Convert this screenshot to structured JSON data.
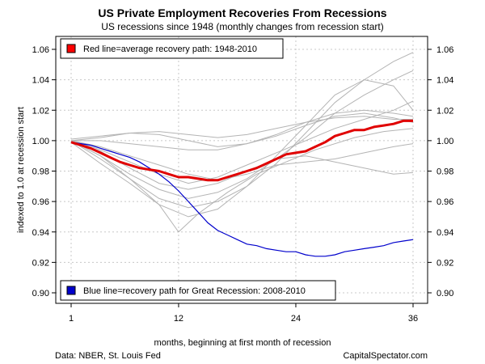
{
  "chart_data": {
    "type": "line",
    "title": "US Private Employment Recoveries From Recessions",
    "subtitle": "US recessions since 1948 (monthly changes from recession start)",
    "xlabel": "months, beginning at first month of recession",
    "ylabel": "indexed to 1.0 at recession start",
    "xlim": [
      1,
      36
    ],
    "ylim": [
      0.9,
      1.06
    ],
    "x_ticks": [
      1,
      12,
      24,
      36
    ],
    "x_tick_labels": [
      "1",
      "12",
      "24",
      "36"
    ],
    "y_ticks": [
      0.9,
      0.92,
      0.94,
      0.96,
      0.98,
      1.0,
      1.02,
      1.04,
      1.06
    ],
    "y_tick_labels": [
      "0.90",
      "0.92",
      "0.94",
      "0.96",
      "0.98",
      "1.00",
      "1.02",
      "1.04",
      "1.06"
    ],
    "grid": true,
    "legend": [
      {
        "label": "Red line=average recovery path: 1948-2010",
        "color": "#ff0000",
        "placement": "top-left"
      },
      {
        "label": "Blue line=recovery path for Great Recession: 2008-2010",
        "color": "#0000cc",
        "placement": "bottom-left"
      }
    ],
    "colors": {
      "average": "#e00000",
      "great_recession": "#0000cc",
      "recessions": "#b4b4b4",
      "grid": "#c8c8c8"
    },
    "series": [
      {
        "name": "average recovery path",
        "kind": "average",
        "x": [
          1,
          2,
          3,
          4,
          5,
          6,
          7,
          8,
          9,
          10,
          11,
          12,
          13,
          14,
          15,
          16,
          17,
          18,
          19,
          20,
          21,
          22,
          23,
          24,
          25,
          26,
          27,
          28,
          29,
          30,
          31,
          32,
          33,
          34,
          35,
          36
        ],
        "y": [
          0.999,
          0.997,
          0.995,
          0.992,
          0.989,
          0.986,
          0.984,
          0.982,
          0.981,
          0.98,
          0.978,
          0.976,
          0.976,
          0.975,
          0.974,
          0.974,
          0.976,
          0.978,
          0.98,
          0.982,
          0.985,
          0.988,
          0.991,
          0.992,
          0.993,
          0.996,
          0.999,
          1.003,
          1.005,
          1.007,
          1.007,
          1.009,
          1.01,
          1.011,
          1.013,
          1.013
        ]
      },
      {
        "name": "Great Recession 2008-2010",
        "kind": "great",
        "x": [
          1,
          2,
          3,
          4,
          5,
          6,
          7,
          8,
          9,
          10,
          11,
          12,
          13,
          14,
          15,
          16,
          17,
          18,
          19,
          20,
          21,
          22,
          23,
          24,
          25,
          26,
          27,
          28,
          29,
          30,
          31,
          32,
          33,
          34,
          35,
          36
        ],
        "y": [
          0.999,
          0.998,
          0.997,
          0.995,
          0.993,
          0.991,
          0.989,
          0.986,
          0.982,
          0.978,
          0.973,
          0.967,
          0.96,
          0.953,
          0.946,
          0.941,
          0.938,
          0.935,
          0.932,
          0.931,
          0.929,
          0.928,
          0.927,
          0.927,
          0.925,
          0.924,
          0.924,
          0.925,
          0.927,
          0.928,
          0.929,
          0.93,
          0.931,
          0.933,
          0.934,
          0.935
        ]
      },
      {
        "name": "recession 1",
        "kind": "recession",
        "x": [
          1,
          4,
          7,
          10,
          13,
          16,
          19,
          22,
          25,
          28,
          31,
          34,
          36
        ],
        "y": [
          1.0,
          0.988,
          0.975,
          0.962,
          0.956,
          0.96,
          0.97,
          0.985,
          1.005,
          1.025,
          1.04,
          1.052,
          1.058
        ]
      },
      {
        "name": "recession 2",
        "kind": "recession",
        "x": [
          1,
          4,
          7,
          10,
          13,
          16,
          19,
          22,
          25,
          28,
          31,
          34,
          36
        ],
        "y": [
          1.0,
          0.99,
          0.978,
          0.968,
          0.962,
          0.966,
          0.975,
          0.988,
          1.002,
          1.018,
          1.03,
          1.04,
          1.046
        ]
      },
      {
        "name": "recession 3",
        "kind": "recession",
        "x": [
          1,
          4,
          7,
          10,
          13,
          16,
          19,
          22,
          25,
          28,
          31,
          34,
          36
        ],
        "y": [
          0.999,
          0.985,
          0.972,
          0.958,
          0.95,
          0.955,
          0.97,
          0.99,
          1.01,
          1.03,
          1.04,
          1.036,
          1.02
        ]
      },
      {
        "name": "recession 4",
        "kind": "recession",
        "x": [
          1,
          4,
          7,
          10,
          13,
          16,
          19,
          22,
          25,
          28,
          31,
          34,
          36
        ],
        "y": [
          1.001,
          1.003,
          1.005,
          1.004,
          1.0,
          0.996,
          0.998,
          1.003,
          1.01,
          1.016,
          1.018,
          1.015,
          1.012
        ]
      },
      {
        "name": "recession 5",
        "kind": "recession",
        "x": [
          1,
          4,
          7,
          10,
          13,
          16,
          19,
          22,
          25,
          28,
          31,
          34,
          36
        ],
        "y": [
          1.0,
          1.002,
          1.005,
          1.006,
          1.004,
          1.002,
          1.004,
          1.008,
          1.012,
          1.015,
          1.016,
          1.014,
          1.014
        ]
      },
      {
        "name": "recession 6",
        "kind": "recession",
        "x": [
          1,
          4,
          7,
          10,
          13,
          16,
          19,
          22,
          25,
          28,
          31,
          34,
          36
        ],
        "y": [
          1.0,
          0.996,
          0.99,
          0.984,
          0.978,
          0.974,
          0.978,
          0.984,
          0.986,
          0.988,
          0.992,
          0.996,
          0.998
        ]
      },
      {
        "name": "recession 7",
        "kind": "recession",
        "x": [
          1,
          4,
          7,
          10,
          13,
          16,
          19,
          22,
          25,
          28,
          31,
          34,
          36
        ],
        "y": [
          1.0,
          0.994,
          0.986,
          0.978,
          0.972,
          0.976,
          0.984,
          0.992,
          1.0,
          1.008,
          1.014,
          1.02,
          1.026
        ]
      },
      {
        "name": "recession 8",
        "kind": "recession",
        "x": [
          1,
          4,
          7,
          10,
          13,
          16,
          19,
          22,
          25,
          28,
          31,
          34,
          36
        ],
        "y": [
          1.0,
          0.993,
          0.982,
          0.972,
          0.968,
          0.972,
          0.98,
          0.988,
          0.99,
          0.986,
          0.982,
          0.978,
          0.979
        ]
      },
      {
        "name": "recession 9",
        "kind": "recession",
        "x": [
          1,
          4,
          7,
          10,
          12,
          14,
          17,
          20,
          23,
          26,
          30,
          33,
          36
        ],
        "y": [
          1.0,
          0.99,
          0.975,
          0.958,
          0.94,
          0.952,
          0.966,
          0.978,
          0.986,
          0.994,
          1.002,
          1.006,
          1.008
        ]
      },
      {
        "name": "recession 10",
        "kind": "recession",
        "x": [
          1,
          4,
          7,
          10,
          13,
          16,
          19,
          22,
          25,
          28,
          31,
          34,
          36
        ],
        "y": [
          1.0,
          1.0,
          0.998,
          0.996,
          0.994,
          0.994,
          0.998,
          1.004,
          1.012,
          1.018,
          1.02,
          1.018,
          1.016
        ]
      }
    ]
  },
  "footer": {
    "source": "Data: NBER, St. Louis Fed",
    "credit": "CapitalSpectator.com"
  }
}
